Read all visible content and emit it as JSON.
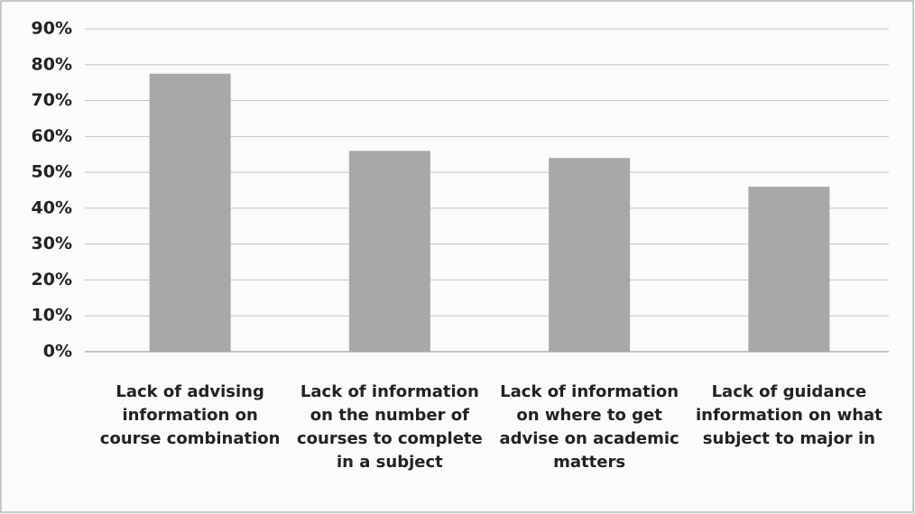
{
  "chart_data": {
    "type": "bar",
    "categories": [
      "Lack of advising information on course combination",
      "Lack of information on the number of courses to complete in a subject",
      "Lack of information on where to get advise on academic matters",
      "Lack of guidance information on what subject to major in"
    ],
    "values": [
      77.5,
      56,
      54,
      46
    ],
    "color": "#a8a8a8",
    "ylim": [
      0,
      90
    ],
    "yticks": [
      {
        "value": 0,
        "label": "0%"
      },
      {
        "value": 10,
        "label": "10%"
      },
      {
        "value": 20,
        "label": "20%"
      },
      {
        "value": 30,
        "label": "30%"
      },
      {
        "value": 40,
        "label": "40%"
      },
      {
        "value": 50,
        "label": "50%"
      },
      {
        "value": 60,
        "label": "60%"
      },
      {
        "value": 70,
        "label": "70%"
      },
      {
        "value": 80,
        "label": "80%"
      },
      {
        "value": 90,
        "label": "90%"
      }
    ],
    "grid": true
  }
}
